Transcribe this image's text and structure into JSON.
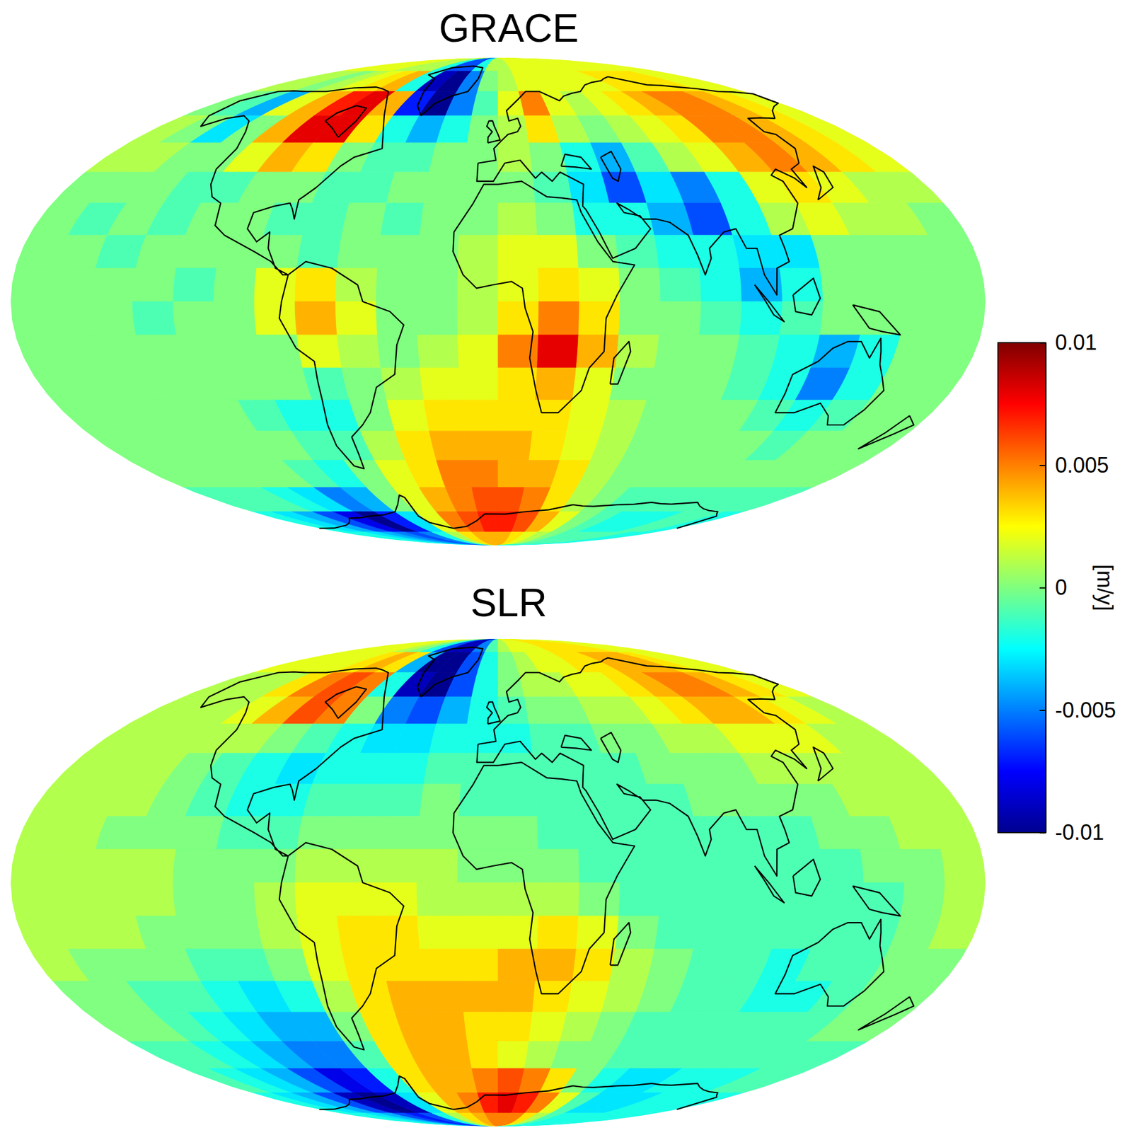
{
  "chart_data": {
    "type": "heatmap",
    "colorbar_label": "[m/y]",
    "colorbar_range": [
      -0.01,
      0.01
    ],
    "colorbar_ticks": [
      -0.01,
      -0.005,
      0,
      0.005,
      0.01
    ],
    "x": [
      -180,
      -165,
      -150,
      -135,
      -120,
      -105,
      -90,
      -75,
      -60,
      -45,
      -30,
      -15,
      0,
      15,
      30,
      45,
      60,
      75,
      90,
      105,
      120,
      135,
      150,
      165,
      180
    ],
    "y": [
      90,
      80,
      70,
      60,
      50,
      40,
      30,
      20,
      10,
      0,
      -10,
      -20,
      -30,
      -40,
      -50,
      -60,
      -70,
      -80,
      -90
    ],
    "panels": [
      {
        "title": "GRACE",
        "values": [
          [
            0.002,
            0.002,
            0.002,
            0.002,
            0.001,
            0.001,
            0.001,
            -0.002,
            -0.006,
            -0.006,
            -0.002,
            0.001,
            0.001,
            0.002,
            0.002,
            0.002,
            0.002,
            0.002,
            0.002,
            0.002,
            0.002,
            0.002,
            0.002,
            0.002
          ],
          [
            0.001,
            0.001,
            0.0,
            0.001,
            0.002,
            0.003,
            0.004,
            -0.002,
            -0.009,
            -0.01,
            -0.005,
            0.0,
            0.001,
            0.002,
            0.002,
            0.002,
            0.002,
            0.002,
            0.003,
            0.003,
            0.003,
            0.003,
            0.002,
            0.002
          ],
          [
            0.0,
            -0.001,
            -0.004,
            0.002,
            0.004,
            0.007,
            0.008,
            0.004,
            -0.007,
            -0.01,
            -0.005,
            -0.001,
            0.002,
            0.005,
            0.002,
            0.001,
            0.002,
            0.003,
            0.004,
            0.005,
            0.005,
            0.004,
            0.003,
            0.002
          ],
          [
            0.001,
            0.0,
            -0.003,
            0.0,
            0.004,
            0.008,
            0.008,
            0.003,
            -0.002,
            -0.004,
            -0.002,
            0.0,
            0.001,
            0.003,
            0.001,
            0.0,
            0.001,
            0.002,
            0.003,
            0.005,
            0.005,
            0.004,
            0.003,
            0.002
          ],
          [
            0.001,
            0.001,
            0.0,
            0.0,
            0.002,
            0.004,
            0.003,
            0.0,
            -0.001,
            -0.001,
            0.0,
            0.0,
            0.001,
            0.0,
            -0.002,
            -0.004,
            -0.001,
            0.001,
            0.002,
            0.004,
            0.005,
            0.004,
            0.003,
            0.002
          ],
          [
            0.0,
            0.0,
            0.0,
            -0.001,
            -0.001,
            0.0,
            0.0,
            -0.001,
            -0.001,
            0.0,
            0.0,
            0.0,
            0.0,
            -0.001,
            -0.003,
            -0.006,
            -0.003,
            -0.005,
            -0.002,
            0.002,
            0.003,
            0.002,
            0.001,
            0.001
          ],
          [
            0.0,
            -0.001,
            0.0,
            -0.001,
            0.0,
            0.0,
            -0.001,
            -0.001,
            0.0,
            -0.001,
            0.0,
            0.0,
            0.001,
            0.0,
            -0.002,
            -0.002,
            -0.004,
            -0.006,
            -0.002,
            0.001,
            0.002,
            0.001,
            0.001,
            0.0
          ],
          [
            0.0,
            0.0,
            -0.001,
            0.0,
            0.0,
            0.0,
            0.0,
            -0.001,
            0.0,
            0.0,
            0.0,
            0.001,
            0.002,
            0.002,
            0.0,
            -0.001,
            -0.002,
            -0.002,
            -0.003,
            -0.003,
            0.0,
            0.0,
            0.0,
            0.0
          ],
          [
            0.0,
            0.0,
            0.0,
            0.0,
            -0.001,
            0.0,
            0.002,
            0.003,
            0.001,
            0.0,
            0.0,
            0.001,
            0.002,
            0.003,
            0.002,
            0.0,
            -0.001,
            -0.002,
            -0.004,
            -0.002,
            0.0,
            0.0,
            0.0,
            0.0
          ],
          [
            0.0,
            0.0,
            0.0,
            -0.001,
            0.0,
            0.0,
            0.002,
            0.004,
            0.002,
            0.0,
            0.0,
            0.001,
            0.003,
            0.005,
            0.003,
            0.0,
            0.0,
            -0.001,
            -0.002,
            -0.001,
            0.0,
            0.0,
            0.0,
            0.0
          ],
          [
            0.0,
            0.0,
            0.0,
            0.0,
            0.0,
            0.0,
            0.0,
            0.002,
            0.001,
            0.0,
            0.001,
            0.002,
            0.005,
            0.008,
            0.004,
            0.001,
            0.0,
            0.0,
            -0.001,
            -0.002,
            -0.004,
            -0.002,
            0.0,
            0.0
          ],
          [
            0.0,
            0.0,
            0.0,
            0.0,
            0.0,
            0.0,
            0.0,
            -0.001,
            0.0,
            0.001,
            0.002,
            0.002,
            0.003,
            0.004,
            0.002,
            0.0,
            0.0,
            0.0,
            -0.001,
            -0.002,
            -0.005,
            -0.002,
            0.0,
            0.0
          ],
          [
            0.0,
            0.0,
            0.0,
            0.0,
            0.0,
            -0.001,
            -0.002,
            -0.002,
            0.0,
            0.002,
            0.003,
            0.003,
            0.003,
            0.003,
            0.002,
            0.001,
            0.0,
            0.0,
            0.0,
            -0.001,
            -0.002,
            -0.001,
            0.0,
            0.0
          ],
          [
            0.0,
            0.0,
            0.0,
            0.0,
            0.0,
            0.0,
            -0.001,
            -0.001,
            0.001,
            0.003,
            0.004,
            0.004,
            0.004,
            0.003,
            0.002,
            0.001,
            0.0,
            0.0,
            0.0,
            0.0,
            -0.001,
            0.0,
            0.0,
            0.0
          ],
          [
            0.0,
            0.0,
            0.0,
            0.0,
            0.0,
            -0.001,
            -0.002,
            0.0,
            0.002,
            0.003,
            0.005,
            0.005,
            0.004,
            0.004,
            0.003,
            0.001,
            0.0,
            0.0,
            0.0,
            0.0,
            0.0,
            0.0,
            0.0,
            0.0
          ],
          [
            -0.001,
            -0.001,
            -0.001,
            -0.002,
            -0.003,
            -0.005,
            -0.004,
            0.0,
            0.002,
            0.004,
            0.005,
            0.006,
            0.006,
            0.005,
            0.003,
            0.001,
            0.0,
            -0.001,
            -0.001,
            -0.001,
            -0.001,
            -0.001,
            -0.001,
            -0.001
          ],
          [
            -0.002,
            -0.003,
            -0.004,
            -0.006,
            -0.008,
            -0.01,
            -0.007,
            -0.003,
            0.002,
            0.005,
            0.006,
            0.007,
            0.007,
            0.006,
            0.004,
            0.002,
            0.0,
            -0.001,
            -0.002,
            -0.002,
            -0.002,
            -0.001,
            -0.001,
            -0.002
          ],
          [
            -0.002,
            -0.002,
            -0.003,
            -0.004,
            -0.005,
            -0.006,
            -0.005,
            -0.002,
            0.001,
            0.003,
            0.004,
            0.004,
            0.004,
            0.003,
            0.002,
            0.001,
            0.0,
            -0.001,
            -0.001,
            -0.001,
            -0.001,
            -0.001,
            -0.002,
            -0.002
          ]
        ]
      },
      {
        "title": "SLR",
        "values": [
          [
            0.002,
            0.002,
            0.002,
            0.002,
            0.001,
            0.0,
            -0.002,
            -0.006,
            -0.009,
            -0.009,
            -0.005,
            -0.001,
            0.001,
            0.002,
            0.002,
            0.002,
            0.003,
            0.003,
            0.003,
            0.003,
            0.003,
            0.002,
            0.002,
            0.002
          ],
          [
            0.002,
            0.002,
            0.002,
            0.002,
            0.003,
            0.004,
            0.003,
            -0.004,
            -0.01,
            -0.01,
            -0.006,
            -0.002,
            0.0,
            0.001,
            0.002,
            0.002,
            0.003,
            0.003,
            0.004,
            0.004,
            0.004,
            0.003,
            0.002,
            0.002
          ],
          [
            0.001,
            0.001,
            0.001,
            0.003,
            0.005,
            0.006,
            0.005,
            -0.002,
            -0.009,
            -0.01,
            -0.006,
            -0.002,
            0.0,
            0.001,
            0.001,
            0.002,
            0.002,
            0.003,
            0.004,
            0.005,
            0.005,
            0.004,
            0.003,
            0.002
          ],
          [
            0.001,
            0.001,
            0.001,
            0.002,
            0.004,
            0.006,
            0.005,
            0.0,
            -0.005,
            -0.006,
            -0.004,
            -0.002,
            -0.001,
            0.0,
            0.0,
            0.001,
            0.001,
            0.002,
            0.003,
            0.004,
            0.004,
            0.003,
            0.002,
            0.001
          ],
          [
            0.001,
            0.001,
            0.001,
            0.001,
            0.001,
            0.0,
            -0.001,
            -0.002,
            -0.003,
            -0.003,
            -0.002,
            -0.002,
            -0.002,
            -0.001,
            -0.001,
            0.0,
            0.0,
            0.001,
            0.001,
            0.002,
            0.002,
            0.002,
            0.001,
            0.001
          ],
          [
            0.001,
            0.001,
            0.001,
            0.0,
            -0.001,
            -0.002,
            -0.003,
            -0.002,
            -0.002,
            -0.002,
            -0.001,
            -0.001,
            -0.001,
            -0.001,
            -0.001,
            -0.001,
            0.0,
            0.0,
            0.0,
            0.001,
            0.001,
            0.001,
            0.001,
            0.001
          ],
          [
            0.001,
            0.001,
            0.001,
            0.0,
            -0.001,
            -0.002,
            -0.002,
            -0.001,
            -0.001,
            -0.001,
            0.0,
            -0.001,
            -0.001,
            -0.001,
            -0.001,
            -0.001,
            -0.001,
            0.0,
            0.0,
            0.0,
            0.0,
            0.001,
            0.001,
            0.001
          ],
          [
            0.001,
            0.001,
            0.0,
            0.0,
            0.0,
            -0.001,
            -0.001,
            0.0,
            0.0,
            0.0,
            0.0,
            0.0,
            0.0,
            -0.001,
            -0.001,
            -0.001,
            -0.001,
            -0.001,
            -0.001,
            -0.001,
            0.0,
            0.0,
            0.001,
            0.001
          ],
          [
            0.001,
            0.001,
            0.001,
            0.001,
            0.0,
            0.0,
            0.0,
            0.001,
            0.001,
            0.001,
            0.001,
            0.0,
            0.0,
            0.0,
            -0.001,
            -0.001,
            -0.001,
            -0.001,
            -0.001,
            -0.001,
            -0.001,
            0.0,
            0.0,
            0.001
          ],
          [
            0.001,
            0.001,
            0.001,
            0.001,
            0.0,
            0.0,
            0.001,
            0.002,
            0.002,
            0.002,
            0.001,
            0.001,
            0.001,
            0.001,
            0.0,
            -0.001,
            -0.001,
            -0.001,
            -0.001,
            -0.001,
            -0.001,
            -0.001,
            0.0,
            0.001
          ],
          [
            0.001,
            0.001,
            0.001,
            0.0,
            0.0,
            0.0,
            0.001,
            0.002,
            0.003,
            0.003,
            0.002,
            0.002,
            0.002,
            0.003,
            0.002,
            0.0,
            -0.001,
            -0.001,
            -0.001,
            -0.001,
            -0.001,
            -0.001,
            0.0,
            0.001
          ],
          [
            0.001,
            0.0,
            0.0,
            0.0,
            -0.001,
            -0.001,
            0.0,
            0.002,
            0.003,
            0.003,
            0.003,
            0.003,
            0.004,
            0.004,
            0.003,
            0.001,
            0.0,
            -0.001,
            -0.001,
            -0.002,
            -0.001,
            -0.001,
            0.0,
            0.0
          ],
          [
            0.0,
            0.0,
            -0.001,
            -0.001,
            -0.002,
            -0.003,
            -0.002,
            0.001,
            0.003,
            0.004,
            0.004,
            0.004,
            0.004,
            0.003,
            0.002,
            0.001,
            0.0,
            -0.001,
            -0.001,
            -0.002,
            -0.002,
            -0.001,
            0.0,
            0.0
          ],
          [
            0.0,
            0.0,
            -0.001,
            -0.002,
            -0.003,
            -0.004,
            -0.004,
            0.0,
            0.003,
            0.004,
            0.004,
            0.003,
            0.003,
            0.002,
            0.001,
            0.0,
            -0.001,
            -0.001,
            -0.001,
            -0.001,
            -0.001,
            -0.001,
            0.0,
            0.0
          ],
          [
            -0.001,
            -0.001,
            -0.002,
            -0.003,
            -0.004,
            -0.005,
            -0.005,
            -0.001,
            0.003,
            0.004,
            0.004,
            0.003,
            0.002,
            0.001,
            0.0,
            0.0,
            -0.001,
            -0.001,
            -0.001,
            -0.001,
            -0.001,
            -0.001,
            -0.001,
            -0.001
          ],
          [
            -0.001,
            -0.002,
            -0.003,
            -0.004,
            -0.006,
            -0.008,
            -0.007,
            -0.002,
            0.003,
            0.004,
            0.004,
            0.005,
            0.006,
            0.005,
            0.003,
            0.0,
            -0.002,
            -0.003,
            -0.003,
            -0.002,
            -0.002,
            -0.002,
            -0.001,
            -0.001
          ],
          [
            -0.002,
            -0.003,
            -0.004,
            -0.006,
            -0.009,
            -0.01,
            -0.009,
            -0.003,
            0.002,
            0.004,
            0.005,
            0.007,
            0.008,
            0.007,
            0.005,
            0.002,
            -0.001,
            -0.003,
            -0.003,
            -0.003,
            -0.002,
            -0.002,
            -0.002,
            -0.002
          ],
          [
            -0.002,
            -0.002,
            -0.003,
            -0.004,
            -0.006,
            -0.007,
            -0.006,
            -0.002,
            0.001,
            0.003,
            0.004,
            0.005,
            0.005,
            0.005,
            0.003,
            0.001,
            -0.001,
            -0.002,
            -0.002,
            -0.002,
            -0.002,
            -0.002,
            -0.002,
            -0.002
          ]
        ]
      }
    ]
  }
}
